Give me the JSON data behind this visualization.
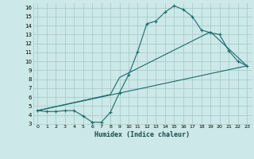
{
  "xlabel": "Humidex (Indice chaleur)",
  "bg_color": "#cce8e8",
  "grid_color": "#aacccc",
  "line_color": "#1a6b6b",
  "xlim": [
    -0.5,
    23.5
  ],
  "ylim": [
    3,
    16.5
  ],
  "xticks": [
    0,
    1,
    2,
    3,
    4,
    5,
    6,
    7,
    8,
    9,
    10,
    11,
    12,
    13,
    14,
    15,
    16,
    17,
    18,
    19,
    20,
    21,
    22,
    23
  ],
  "yticks": [
    3,
    4,
    5,
    6,
    7,
    8,
    9,
    10,
    11,
    12,
    13,
    14,
    15,
    16
  ],
  "line1_x": [
    0,
    1,
    2,
    3,
    4,
    5,
    6,
    7,
    8,
    9,
    10,
    11,
    12,
    13,
    14,
    15,
    16,
    17,
    18,
    19,
    20,
    21,
    22,
    23
  ],
  "line1_y": [
    4.5,
    4.4,
    4.4,
    4.5,
    4.5,
    3.9,
    3.2,
    3.2,
    4.3,
    6.5,
    8.5,
    11.1,
    14.2,
    14.5,
    15.5,
    16.2,
    15.8,
    15.0,
    13.5,
    13.2,
    13.0,
    11.2,
    10.0,
    9.5
  ],
  "line2_x": [
    0,
    23
  ],
  "line2_y": [
    4.5,
    9.5
  ],
  "line3_x": [
    0,
    8,
    9,
    19,
    23
  ],
  "line3_y": [
    4.5,
    6.3,
    8.2,
    13.3,
    9.5
  ]
}
